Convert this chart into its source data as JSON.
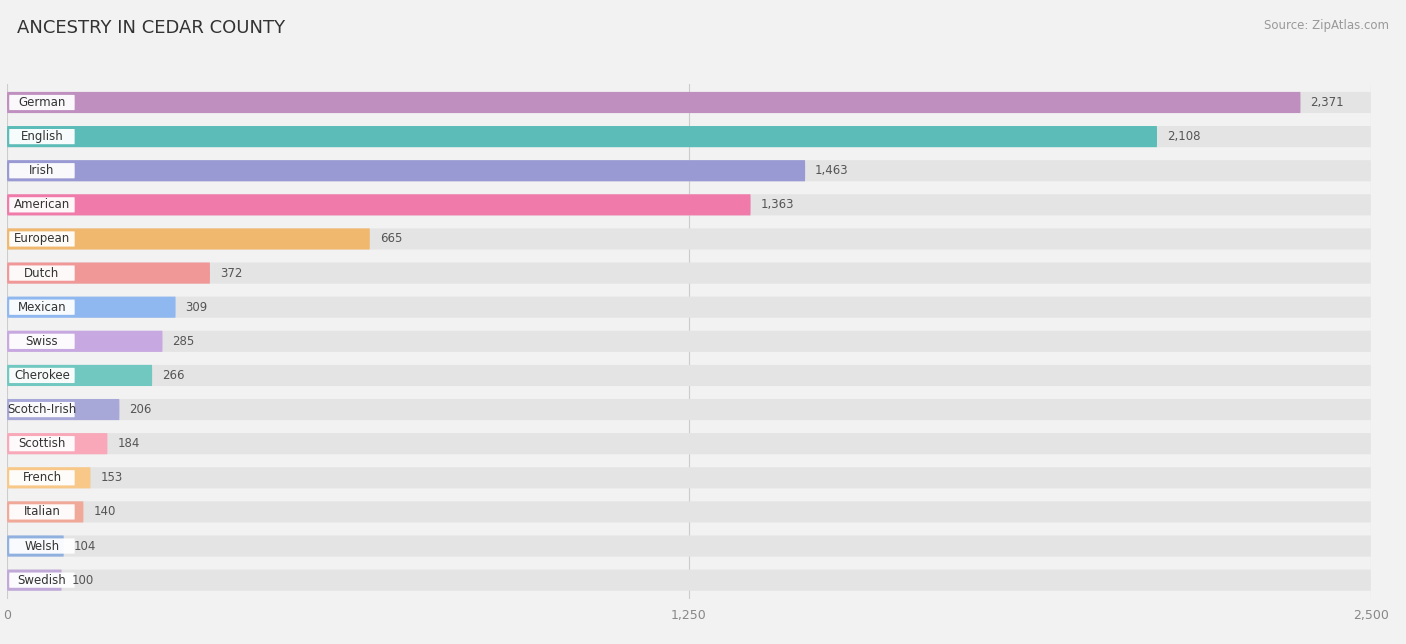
{
  "title": "ANCESTRY IN CEDAR COUNTY",
  "source": "Source: ZipAtlas.com",
  "categories": [
    "German",
    "English",
    "Irish",
    "American",
    "European",
    "Dutch",
    "Mexican",
    "Swiss",
    "Cherokee",
    "Scotch-Irish",
    "Scottish",
    "French",
    "Italian",
    "Welsh",
    "Swedish"
  ],
  "values": [
    2371,
    2108,
    1463,
    1363,
    665,
    372,
    309,
    285,
    266,
    206,
    184,
    153,
    140,
    104,
    100
  ],
  "colors": [
    "#bf8fbf",
    "#5bbcb8",
    "#9999d4",
    "#f07aaa",
    "#f0b86e",
    "#f09898",
    "#90b8f0",
    "#c8a8e0",
    "#70c8c0",
    "#a8a8d8",
    "#f8a8b8",
    "#f8c888",
    "#f0a898",
    "#90b0e0",
    "#c0a8d8"
  ],
  "xlim": [
    0,
    2500
  ],
  "background_color": "#f2f2f2",
  "row_bg_color": "#e8e8e8",
  "bar_bg_color": "#ffffff",
  "title_fontsize": 14,
  "value_fontsize": 9
}
